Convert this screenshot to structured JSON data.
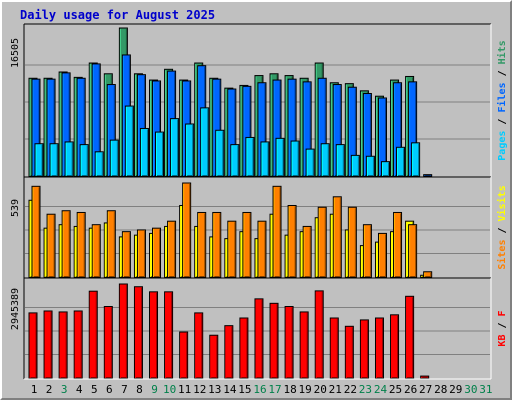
{
  "chart_data": {
    "type": "bar",
    "title": "Daily usage for August 2025",
    "categories": [
      "1",
      "2",
      "3",
      "4",
      "5",
      "6",
      "7",
      "8",
      "9",
      "10",
      "11",
      "12",
      "13",
      "14",
      "15",
      "16",
      "17",
      "18",
      "19",
      "20",
      "21",
      "22",
      "23",
      "24",
      "25",
      "26",
      "27",
      "28",
      "29",
      "30",
      "31"
    ],
    "weekend_days": [
      "3",
      "9",
      "10",
      "16",
      "17",
      "23",
      "24",
      "30",
      "31"
    ],
    "panels": [
      {
        "id": "hits-files-pages",
        "ymax": 16505,
        "ymax_label": "16505",
        "axis_labels": [
          "Pages",
          "Files",
          "Hits"
        ],
        "series": [
          {
            "name": "Hits",
            "color": "#339966",
            "values": [
              10900,
              10900,
              11600,
              11000,
              12600,
              11400,
              16505,
              11400,
              10700,
              11900,
              10700,
              12600,
              10900,
              9800,
              10100,
              11200,
              11400,
              11200,
              10900,
              12600,
              10400,
              10300,
              9500,
              8900,
              10700,
              11100,
              0,
              0,
              0,
              0,
              0
            ]
          },
          {
            "name": "Files",
            "color": "#0066ff",
            "values": [
              10800,
              10800,
              11500,
              10900,
              12500,
              10200,
              13500,
              11300,
              10600,
              11700,
              10600,
              12300,
              10800,
              9700,
              10000,
              10400,
              10700,
              10800,
              10500,
              10900,
              10200,
              9900,
              9200,
              8700,
              10400,
              10500,
              150,
              0,
              0,
              0,
              0
            ]
          },
          {
            "name": "Pages",
            "color": "#00ccff",
            "values": [
              3600,
              3600,
              3800,
              3500,
              2700,
              4000,
              7800,
              5300,
              4900,
              6400,
              5800,
              7600,
              5100,
              3500,
              4300,
              3800,
              4200,
              3900,
              3000,
              3600,
              3500,
              2300,
              2200,
              1600,
              3200,
              3700,
              0,
              0,
              0,
              0,
              0
            ]
          }
        ]
      },
      {
        "id": "visits-sites",
        "ymax": 539,
        "ymax_label": "539",
        "axis_labels": [
          "Sites",
          "Visits"
        ],
        "series": [
          {
            "name": "Visits",
            "color": "#ffff00",
            "values": [
              440,
              280,
              300,
              290,
              280,
              310,
              230,
              240,
              250,
              290,
              410,
              290,
              230,
              220,
              260,
              220,
              360,
              240,
              260,
              340,
              360,
              270,
              180,
              200,
              260,
              320,
              10,
              0,
              0,
              0,
              0
            ]
          },
          {
            "name": "Sites",
            "color": "#ff8000",
            "values": [
              520,
              360,
              380,
              370,
              300,
              380,
              260,
              270,
              280,
              320,
              539,
              370,
              370,
              320,
              370,
              320,
              520,
              410,
              290,
              400,
              460,
              400,
              300,
              250,
              370,
              300,
              30,
              0,
              0,
              0,
              0
            ]
          }
        ]
      },
      {
        "id": "kbytes",
        "ymax": 2945389,
        "ymax_label": "2945389",
        "axis_labels": [
          "KB",
          "F"
        ],
        "series": [
          {
            "name": "KB F",
            "color": "#ff0000",
            "values": [
              2040000,
              2100000,
              2070000,
              2100000,
              2720000,
              2240000,
              2945389,
              2860000,
              2700000,
              2700000,
              1440000,
              2040000,
              1340000,
              1640000,
              1880000,
              2480000,
              2340000,
              2240000,
              2070000,
              2730000,
              1880000,
              1620000,
              1820000,
              1880000,
              1980000,
              2560000,
              60000,
              0,
              0,
              0,
              0
            ]
          }
        ]
      }
    ]
  },
  "colors": {
    "background": "#c0c0c0",
    "axis_day": "#000000",
    "axis_weekend": "#00804a",
    "title": "#0000cc"
  }
}
